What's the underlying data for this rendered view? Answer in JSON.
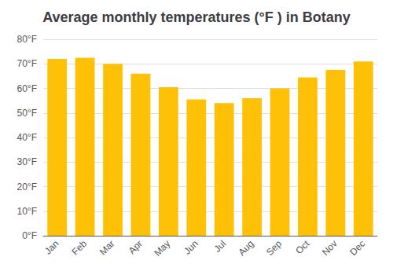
{
  "chart_data": {
    "type": "bar",
    "title": "Average monthly temperatures (°F ) in Botany",
    "categories": [
      "Jan",
      "Feb",
      "Mar",
      "Apr",
      "May",
      "Jun",
      "Jul",
      "Aug",
      "Sep",
      "Oct",
      "Nov",
      "Dec"
    ],
    "values": [
      72,
      72.5,
      70,
      66,
      60.5,
      55.5,
      54,
      56,
      60,
      64.5,
      67.5,
      71
    ],
    "color": "#FFC107",
    "ylim": [
      0,
      80
    ],
    "yticks": [
      {
        "value": 0,
        "label": "0°F"
      },
      {
        "value": 10,
        "label": "10°F"
      },
      {
        "value": 20,
        "label": "20°F"
      },
      {
        "value": 30,
        "label": "30°F"
      },
      {
        "value": 40,
        "label": "40°F"
      },
      {
        "value": 50,
        "label": "50°F"
      },
      {
        "value": 60,
        "label": "60°F"
      },
      {
        "value": 70,
        "label": "70°F"
      },
      {
        "value": 80,
        "label": "80°F"
      }
    ],
    "grid": true
  }
}
